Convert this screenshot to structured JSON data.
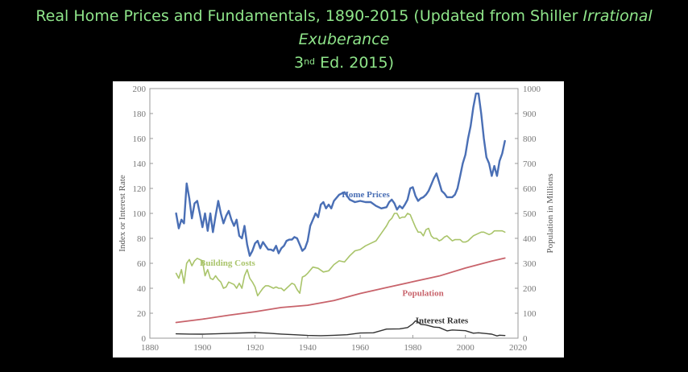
{
  "slide": {
    "title_part1": "Real Home Prices and Fundamentals, 1890-2015 (Updated from Shiller",
    "title_italic_1": "Irrational",
    "title_italic_2": "Exuberance",
    "title_edition_num": "3",
    "title_edition_sup": "nd",
    "title_edition_rest": "Ed. 2015)"
  },
  "colors": {
    "background": "#000000",
    "title": "#8fe58a",
    "home_prices": "#4a6fb5",
    "building_costs": "#a9c46a",
    "population": "#c8636b",
    "interest_rates": "#333333"
  },
  "chart_data": {
    "type": "line",
    "title": "",
    "xlabel": "",
    "ylabel": "Index or Interest Rate",
    "ylabel_right": "Population in Millions",
    "xlim": [
      1880,
      2020
    ],
    "ylim": [
      0,
      200
    ],
    "ylim_right": [
      0,
      1000
    ],
    "x_ticks": [
      1880,
      1900,
      1920,
      1940,
      1960,
      1980,
      2000,
      2020
    ],
    "y_ticks": [
      0,
      20,
      40,
      60,
      80,
      100,
      120,
      140,
      160,
      180,
      200
    ],
    "y_ticks_right": [
      0,
      100,
      200,
      300,
      400,
      500,
      600,
      700,
      800,
      900,
      1000
    ],
    "grid": false,
    "legend": "inline labels",
    "series": [
      {
        "name": "Home Prices",
        "axis": "left",
        "x": [
          1890,
          1891,
          1892,
          1893,
          1894,
          1895,
          1896,
          1897,
          1898,
          1899,
          1900,
          1901,
          1902,
          1903,
          1904,
          1905,
          1906,
          1907,
          1908,
          1909,
          1910,
          1911,
          1912,
          1913,
          1914,
          1915,
          1916,
          1917,
          1918,
          1919,
          1920,
          1921,
          1922,
          1923,
          1924,
          1925,
          1926,
          1927,
          1928,
          1929,
          1930,
          1931,
          1932,
          1933,
          1934,
          1935,
          1936,
          1937,
          1938,
          1939,
          1940,
          1941,
          1942,
          1943,
          1944,
          1945,
          1946,
          1947,
          1948,
          1949,
          1950,
          1952,
          1954,
          1956,
          1958,
          1960,
          1962,
          1964,
          1966,
          1968,
          1970,
          1971,
          1972,
          1973,
          1974,
          1975,
          1976,
          1977,
          1978,
          1979,
          1980,
          1981,
          1982,
          1983,
          1984,
          1985,
          1986,
          1987,
          1988,
          1989,
          1990,
          1991,
          1992,
          1993,
          1994,
          1995,
          1996,
          1997,
          1998,
          1999,
          2000,
          2001,
          2002,
          2003,
          2004,
          2005,
          2006,
          2007,
          2008,
          2009,
          2010,
          2011,
          2012,
          2013,
          2014,
          2015
        ],
        "values": [
          100,
          88,
          95,
          92,
          124,
          112,
          96,
          108,
          110,
          100,
          89,
          100,
          86,
          100,
          85,
          98,
          110,
          100,
          92,
          98,
          102,
          95,
          90,
          95,
          82,
          80,
          90,
          75,
          66,
          70,
          76,
          78,
          72,
          77,
          74,
          71,
          71,
          70,
          74,
          68,
          72,
          74,
          78,
          79,
          79,
          81,
          80,
          75,
          70,
          72,
          78,
          90,
          95,
          100,
          97,
          107,
          109,
          104,
          107,
          104,
          110,
          115,
          117,
          111,
          109,
          110,
          109,
          109,
          106,
          104,
          105,
          109,
          111,
          108,
          103,
          106,
          104,
          107,
          111,
          120,
          121,
          114,
          110,
          112,
          113,
          115,
          118,
          123,
          128,
          132,
          125,
          118,
          116,
          113,
          113,
          113,
          115,
          120,
          130,
          140,
          147,
          160,
          170,
          185,
          196,
          196,
          180,
          160,
          145,
          140,
          130,
          138,
          130,
          142,
          148,
          158
        ]
      },
      {
        "name": "Building Costs",
        "axis": "left",
        "x": [
          1890,
          1891,
          1892,
          1893,
          1894,
          1895,
          1896,
          1897,
          1898,
          1899,
          1900,
          1901,
          1902,
          1903,
          1904,
          1905,
          1906,
          1907,
          1908,
          1909,
          1910,
          1911,
          1912,
          1913,
          1914,
          1915,
          1916,
          1917,
          1918,
          1919,
          1920,
          1921,
          1922,
          1923,
          1924,
          1925,
          1926,
          1927,
          1928,
          1929,
          1930,
          1931,
          1932,
          1933,
          1934,
          1935,
          1936,
          1937,
          1938,
          1939,
          1940,
          1942,
          1944,
          1946,
          1948,
          1950,
          1952,
          1954,
          1956,
          1958,
          1960,
          1962,
          1964,
          1966,
          1968,
          1970,
          1971,
          1972,
          1973,
          1974,
          1975,
          1976,
          1977,
          1978,
          1979,
          1980,
          1981,
          1982,
          1983,
          1984,
          1985,
          1986,
          1987,
          1988,
          1989,
          1990,
          1991,
          1992,
          1993,
          1994,
          1995,
          1996,
          1997,
          1998,
          1999,
          2000,
          2001,
          2002,
          2003,
          2004,
          2005,
          2006,
          2007,
          2008,
          2009,
          2010,
          2011,
          2012,
          2013,
          2014,
          2015
        ],
        "values": [
          52,
          48,
          55,
          44,
          60,
          63,
          58,
          62,
          64,
          63,
          62,
          50,
          55,
          48,
          47,
          50,
          47,
          45,
          40,
          41,
          45,
          44,
          43,
          40,
          44,
          40,
          50,
          55,
          48,
          45,
          41,
          34,
          37,
          40,
          42,
          42,
          41,
          40,
          41,
          40,
          40,
          38,
          40,
          42,
          44,
          43,
          39,
          36,
          49,
          50,
          52,
          57,
          56,
          53,
          54,
          59,
          62,
          61,
          66,
          70,
          71,
          74,
          76,
          78,
          84,
          90,
          94,
          96,
          100,
          100,
          96,
          97,
          97,
          100,
          99,
          94,
          89,
          85,
          85,
          82,
          87,
          88,
          82,
          80,
          80,
          78,
          79,
          81,
          82,
          80,
          78,
          79,
          79,
          79,
          77,
          77,
          78,
          80,
          82,
          83,
          84,
          85,
          85,
          84,
          83,
          84,
          86,
          86,
          86,
          86,
          85
        ]
      },
      {
        "name": "Population",
        "axis": "right",
        "x": [
          1890,
          1900,
          1910,
          1920,
          1930,
          1940,
          1950,
          1960,
          1970,
          1980,
          1990,
          2000,
          2010,
          2015
        ],
        "values": [
          63,
          76,
          92,
          106,
          123,
          132,
          151,
          179,
          203,
          226,
          249,
          281,
          309,
          321
        ]
      },
      {
        "name": "Interest Rates",
        "axis": "left",
        "x": [
          1890,
          1895,
          1900,
          1905,
          1910,
          1915,
          1920,
          1925,
          1930,
          1935,
          1940,
          1945,
          1950,
          1955,
          1960,
          1965,
          1970,
          1975,
          1978,
          1980,
          1981,
          1982,
          1983,
          1985,
          1988,
          1990,
          1993,
          1995,
          2000,
          2003,
          2005,
          2008,
          2010,
          2012,
          2013,
          2015
        ],
        "values": [
          3.5,
          3.3,
          3.2,
          3.5,
          3.8,
          4.2,
          4.5,
          4.0,
          3.3,
          2.8,
          2.2,
          2.0,
          2.3,
          2.8,
          4.1,
          4.3,
          7.3,
          7.5,
          8.5,
          11.5,
          13.9,
          13.0,
          11.1,
          10.6,
          8.9,
          8.6,
          5.9,
          6.6,
          6.0,
          4.0,
          4.3,
          3.7,
          3.2,
          1.8,
          2.4,
          2.1
        ]
      }
    ],
    "annotations": [
      {
        "text": "Home Prices",
        "series": "Home Prices"
      },
      {
        "text": "Building Costs",
        "series": "Building Costs"
      },
      {
        "text": "Population",
        "series": "Population"
      },
      {
        "text": "Interest Rates",
        "series": "Interest Rates"
      }
    ]
  }
}
